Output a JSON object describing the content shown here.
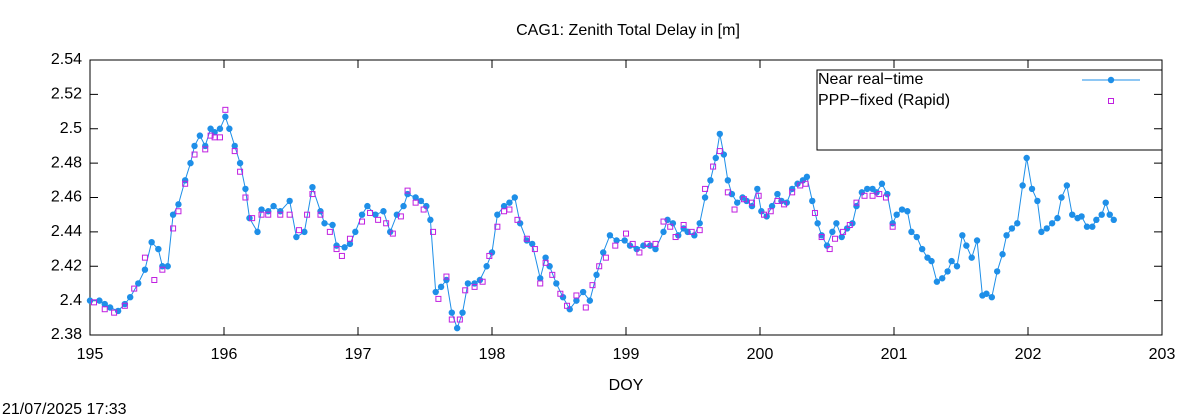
{
  "chart_data": {
    "type": "line",
    "title": "CAG1: Zenith Total Delay in [m]",
    "x_label": "DOY",
    "timestamp": "21/07/2025 17:33",
    "xlim": [
      195,
      203
    ],
    "xticks": [
      195,
      196,
      197,
      198,
      199,
      200,
      201,
      202,
      203
    ],
    "ylim": [
      2.38,
      2.54
    ],
    "yticks": [
      2.38,
      2.4,
      2.42,
      2.44,
      2.46,
      2.48,
      2.5,
      2.52,
      2.54
    ],
    "legend": "top-right",
    "series": [
      {
        "name": "Near real−time",
        "color": "#1e8fe8",
        "style": "linespoints",
        "x": [
          195.0,
          195.07,
          195.11,
          195.15,
          195.21,
          195.26,
          195.3,
          195.36,
          195.41,
          195.46,
          195.51,
          195.54,
          195.58,
          195.62,
          195.66,
          195.71,
          195.75,
          195.78,
          195.82,
          195.86,
          195.9,
          195.93,
          195.97,
          196.01,
          196.04,
          196.08,
          196.12,
          196.16,
          196.19,
          196.25,
          196.28,
          196.33,
          196.37,
          196.42,
          196.49,
          196.54,
          196.6,
          196.66,
          196.72,
          196.75,
          196.81,
          196.84,
          196.9,
          196.94,
          196.98,
          197.03,
          197.07,
          197.13,
          197.19,
          197.24,
          197.29,
          197.34,
          197.37,
          197.43,
          197.47,
          197.51,
          197.54,
          197.58,
          197.62,
          197.66,
          197.7,
          197.74,
          197.78,
          197.82,
          197.87,
          197.91,
          197.96,
          198.0,
          198.04,
          198.09,
          198.13,
          198.17,
          198.21,
          198.26,
          198.3,
          198.36,
          198.4,
          198.43,
          198.48,
          198.53,
          198.58,
          198.63,
          198.68,
          198.73,
          198.78,
          198.83,
          198.88,
          198.93,
          198.99,
          199.03,
          199.08,
          199.13,
          199.18,
          199.22,
          199.28,
          199.31,
          199.35,
          199.39,
          199.43,
          199.46,
          199.51,
          199.55,
          199.59,
          199.63,
          199.67,
          199.7,
          199.73,
          199.76,
          199.79,
          199.83,
          199.87,
          199.9,
          199.94,
          199.98,
          200.01,
          200.05,
          200.09,
          200.13,
          200.16,
          200.2,
          200.24,
          200.28,
          200.32,
          200.35,
          200.39,
          200.43,
          200.46,
          200.5,
          200.54,
          200.57,
          200.61,
          200.65,
          200.69,
          200.72,
          200.76,
          200.8,
          200.84,
          200.87,
          200.91,
          200.95,
          200.99,
          201.02,
          201.06,
          201.1,
          201.13,
          201.17,
          201.21,
          201.25,
          201.28,
          201.32,
          201.36,
          201.4,
          201.43,
          201.47,
          201.51,
          201.54,
          201.58,
          201.62,
          201.66,
          201.69,
          201.73,
          201.77,
          201.81,
          201.84,
          201.88,
          201.92,
          201.96,
          201.99,
          202.03,
          202.07,
          202.1,
          202.14,
          202.18,
          202.22,
          202.25,
          202.29,
          202.33,
          202.37,
          202.4,
          202.44,
          202.48,
          202.51,
          202.55,
          202.58,
          202.61,
          202.64
        ],
        "values": [
          2.4,
          2.4,
          2.398,
          2.396,
          2.394,
          2.398,
          2.402,
          2.41,
          2.418,
          2.434,
          2.43,
          2.42,
          2.42,
          2.45,
          2.456,
          2.47,
          2.48,
          2.49,
          2.496,
          2.49,
          2.5,
          2.498,
          2.5,
          2.507,
          2.5,
          2.49,
          2.48,
          2.465,
          2.448,
          2.44,
          2.453,
          2.452,
          2.455,
          2.452,
          2.458,
          2.437,
          2.44,
          2.466,
          2.452,
          2.445,
          2.444,
          2.432,
          2.431,
          2.433,
          2.44,
          2.45,
          2.455,
          2.45,
          2.452,
          2.44,
          2.45,
          2.455,
          2.462,
          2.46,
          2.458,
          2.455,
          2.447,
          2.405,
          2.408,
          2.412,
          2.393,
          2.384,
          2.393,
          2.41,
          2.41,
          2.412,
          2.42,
          2.428,
          2.45,
          2.455,
          2.457,
          2.46,
          2.445,
          2.435,
          2.433,
          2.413,
          2.425,
          2.42,
          2.41,
          2.402,
          2.395,
          2.4,
          2.405,
          2.4,
          2.415,
          2.428,
          2.438,
          2.435,
          2.435,
          2.432,
          2.43,
          2.432,
          2.432,
          2.43,
          2.44,
          2.447,
          2.445,
          2.438,
          2.442,
          2.44,
          2.438,
          2.445,
          2.46,
          2.47,
          2.483,
          2.497,
          2.485,
          2.47,
          2.462,
          2.457,
          2.46,
          2.458,
          2.455,
          2.465,
          2.452,
          2.449,
          2.455,
          2.462,
          2.458,
          2.457,
          2.465,
          2.468,
          2.47,
          2.472,
          2.458,
          2.445,
          2.438,
          2.432,
          2.44,
          2.445,
          2.437,
          2.442,
          2.445,
          2.455,
          2.463,
          2.465,
          2.465,
          2.463,
          2.468,
          2.462,
          2.445,
          2.45,
          2.453,
          2.452,
          2.44,
          2.437,
          2.43,
          2.425,
          2.423,
          2.411,
          2.413,
          2.417,
          2.423,
          2.42,
          2.438,
          2.432,
          2.425,
          2.435,
          2.403,
          2.404,
          2.402,
          2.417,
          2.427,
          2.438,
          2.442,
          2.445,
          2.467,
          2.483,
          2.465,
          2.458,
          2.44,
          2.442,
          2.445,
          2.448,
          2.46,
          2.467,
          2.45,
          2.448,
          2.449,
          2.443,
          2.443,
          2.447,
          2.45,
          2.457,
          2.45,
          2.447
        ]
      },
      {
        "name": "PPP−fixed (Rapid)",
        "color": "#c020e0",
        "style": "points",
        "x": [
          195.03,
          195.11,
          195.18,
          195.26,
          195.33,
          195.41,
          195.48,
          195.54,
          195.62,
          195.66,
          195.71,
          195.78,
          195.86,
          195.9,
          195.93,
          195.97,
          196.01,
          196.08,
          196.12,
          196.16,
          196.21,
          196.28,
          196.33,
          196.42,
          196.49,
          196.56,
          196.62,
          196.66,
          196.72,
          196.79,
          196.84,
          196.88,
          196.94,
          197.03,
          197.09,
          197.15,
          197.21,
          197.26,
          197.32,
          197.37,
          197.43,
          197.49,
          197.56,
          197.6,
          197.66,
          197.7,
          197.76,
          197.8,
          197.87,
          197.93,
          197.98,
          198.04,
          198.09,
          198.13,
          198.19,
          198.26,
          198.32,
          198.36,
          198.4,
          198.45,
          198.51,
          198.56,
          198.63,
          198.7,
          198.75,
          198.8,
          198.85,
          198.92,
          199.0,
          199.05,
          199.1,
          199.16,
          199.22,
          199.28,
          199.33,
          199.37,
          199.43,
          199.49,
          199.55,
          199.59,
          199.65,
          199.7,
          199.76,
          199.81,
          199.88,
          199.94,
          199.99,
          200.03,
          200.08,
          200.13,
          200.18,
          200.24,
          200.3,
          200.34,
          200.41,
          200.46,
          200.52,
          200.56,
          200.62,
          200.67,
          200.72,
          200.78,
          200.84,
          200.89,
          200.94,
          200.99
        ],
        "values": [
          2.399,
          2.395,
          2.393,
          2.397,
          2.407,
          2.425,
          2.412,
          2.418,
          2.442,
          2.452,
          2.468,
          2.485,
          2.488,
          2.496,
          2.495,
          2.495,
          2.511,
          2.487,
          2.475,
          2.46,
          2.448,
          2.45,
          2.45,
          2.45,
          2.45,
          2.441,
          2.45,
          2.462,
          2.45,
          2.44,
          2.43,
          2.426,
          2.436,
          2.446,
          2.451,
          2.447,
          2.445,
          2.439,
          2.449,
          2.464,
          2.457,
          2.453,
          2.44,
          2.401,
          2.414,
          2.389,
          2.389,
          2.406,
          2.408,
          2.411,
          2.426,
          2.443,
          2.452,
          2.453,
          2.447,
          2.436,
          2.43,
          2.41,
          2.422,
          2.415,
          2.404,
          2.397,
          2.403,
          2.396,
          2.409,
          2.42,
          2.425,
          2.432,
          2.439,
          2.433,
          2.428,
          2.433,
          2.433,
          2.446,
          2.443,
          2.437,
          2.444,
          2.44,
          2.441,
          2.465,
          2.478,
          2.487,
          2.463,
          2.453,
          2.459,
          2.457,
          2.461,
          2.45,
          2.452,
          2.458,
          2.456,
          2.463,
          2.467,
          2.468,
          2.451,
          2.437,
          2.43,
          2.436,
          2.44,
          2.444,
          2.457,
          2.461,
          2.461,
          2.462,
          2.46,
          2.443
        ]
      }
    ]
  }
}
